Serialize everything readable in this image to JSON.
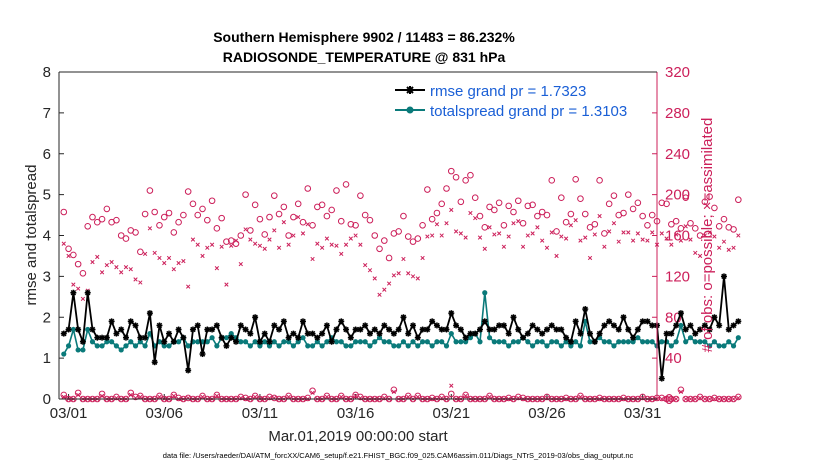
{
  "chart_data": {
    "type": "line",
    "title_line1": "Southern Hemisphere 9902 / 11483 = 86.232%",
    "title_line2": "RADIOSONDE_TEMPERATURE @ 831 hPa",
    "ylabel_left": "rmse and totalspread",
    "ylabel_right": "# of obs: o=possible; ×=assimilated",
    "xlabel": "Mar.01,2019 00:00:00 start",
    "footer": "data file: /Users/raeder/DAI/ATM_forcXX/CAM6_setup/f.e21.FHIST_BGC.f09_025.CAM6assim.011/Diags_NTrS_2019-03/obs_diag_output.nc",
    "xlim": [
      0.5,
      31.75
    ],
    "ylim_left": [
      0,
      8
    ],
    "ylim_right": [
      0,
      320
    ],
    "left_ticks": [
      "0",
      "1",
      "2",
      "3",
      "4",
      "5",
      "6",
      "7",
      "8"
    ],
    "right_ticks": [
      "0",
      "40",
      "80",
      "120",
      "160",
      "200",
      "240",
      "280",
      "320"
    ],
    "x_ticks": [
      {
        "pos": 1,
        "label": "03/01"
      },
      {
        "pos": 6,
        "label": "03/06"
      },
      {
        "pos": 11,
        "label": "03/11"
      },
      {
        "pos": 16,
        "label": "03/16"
      },
      {
        "pos": 21,
        "label": "03/21"
      },
      {
        "pos": 26,
        "label": "03/26"
      },
      {
        "pos": 31,
        "label": "03/31"
      }
    ],
    "x_start": 0.75,
    "x_step": 0.25,
    "series": [
      {
        "name": "rmse",
        "legend": "rmse grand pr = 1.7323",
        "color": "#000000",
        "values": [
          1.6,
          1.7,
          2.6,
          1.7,
          1.4,
          2.6,
          1.7,
          1.5,
          1.5,
          1.5,
          1.9,
          1.6,
          1.7,
          1.5,
          1.9,
          1.8,
          1.5,
          1.5,
          2.1,
          0.9,
          1.8,
          1.4,
          1.6,
          1.4,
          1.7,
          1.5,
          0.7,
          1.7,
          1.8,
          1.1,
          1.7,
          1.7,
          1.8,
          1.5,
          1.3,
          1.5,
          1.4,
          1.8,
          1.7,
          1.6,
          2.0,
          1.4,
          1.6,
          1.4,
          1.8,
          1.7,
          1.9,
          1.5,
          1.6,
          1.5,
          1.9,
          1.6,
          1.6,
          1.5,
          1.6,
          1.8,
          1.4,
          1.7,
          1.9,
          1.7,
          1.5,
          1.7,
          1.7,
          1.8,
          1.6,
          1.7,
          1.6,
          1.8,
          1.7,
          1.6,
          1.7,
          2.0,
          1.6,
          1.8,
          1.5,
          1.7,
          1.7,
          1.9,
          1.8,
          1.7,
          1.7,
          2.1,
          1.8,
          1.7,
          1.5,
          1.6,
          1.6,
          1.7,
          1.9,
          1.7,
          1.7,
          1.8,
          1.8,
          1.6,
          2.0,
          1.7,
          1.5,
          1.6,
          1.8,
          1.7,
          1.6,
          1.7,
          1.8,
          1.7,
          1.7,
          1.5,
          1.4,
          1.9,
          1.6,
          2.2,
          1.6,
          1.4,
          1.6,
          1.8,
          1.9,
          1.8,
          1.7,
          2.0,
          1.7,
          1.5,
          1.7,
          1.9,
          1.9,
          1.8,
          1.8,
          0.5,
          1.6,
          1.6,
          1.8,
          2.1,
          1.7,
          1.8,
          1.6,
          1.7,
          1.8,
          1.7,
          2.0,
          1.8,
          3.0,
          1.7,
          1.8,
          1.9
        ]
      },
      {
        "name": "totalspread",
        "legend": "totalspread grand pr = 1.3103",
        "color": "#0a7a7a",
        "values": [
          1.1,
          1.3,
          1.7,
          1.2,
          1.2,
          1.7,
          1.4,
          1.3,
          1.3,
          1.4,
          1.4,
          1.3,
          1.2,
          1.3,
          1.4,
          1.3,
          1.4,
          1.3,
          1.6,
          1.3,
          1.4,
          1.3,
          1.3,
          1.4,
          1.4,
          1.5,
          1.3,
          1.4,
          1.4,
          1.4,
          1.4,
          1.5,
          1.3,
          1.5,
          1.5,
          1.6,
          1.5,
          1.4,
          1.4,
          1.3,
          1.4,
          1.3,
          1.4,
          1.3,
          1.4,
          1.3,
          1.4,
          1.4,
          1.3,
          1.4,
          1.5,
          1.3,
          1.3,
          1.4,
          1.3,
          1.4,
          1.5,
          1.4,
          1.4,
          1.3,
          1.3,
          1.4,
          1.4,
          1.4,
          1.3,
          1.4,
          1.5,
          1.4,
          1.4,
          1.3,
          1.3,
          1.4,
          1.3,
          1.4,
          1.3,
          1.4,
          1.4,
          1.3,
          1.4,
          1.4,
          1.3,
          1.6,
          1.4,
          1.4,
          1.4,
          1.5,
          1.6,
          1.4,
          2.6,
          1.5,
          1.4,
          1.4,
          1.4,
          1.3,
          1.4,
          1.4,
          1.5,
          1.4,
          1.3,
          1.4,
          1.4,
          1.3,
          1.4,
          1.4,
          1.3,
          1.4,
          1.3,
          1.4,
          1.3,
          1.9,
          1.4,
          1.4,
          1.5,
          1.4,
          1.4,
          1.3,
          1.4,
          1.4,
          1.4,
          1.4,
          1.5,
          1.4,
          1.4,
          1.4,
          1.3,
          1.4,
          1.4,
          1.3,
          1.4,
          1.8,
          1.4,
          1.5,
          1.4,
          1.4,
          1.4,
          1.3,
          1.4,
          1.3,
          1.3,
          1.4,
          1.3,
          1.5
        ]
      },
      {
        "name": "possible obs",
        "marker": "circle",
        "color": "#cc1f5a",
        "axis": "right",
        "values": [
          183,
          147,
          141,
          132,
          123,
          169,
          178,
          173,
          176,
          186,
          173,
          175,
          160,
          157,
          165,
          163,
          144,
          181,
          204,
          183,
          170,
          178,
          182,
          163,
          173,
          180,
          203,
          191,
          180,
          186,
          175,
          194,
          167,
          177,
          154,
          155,
          152,
          160,
          200,
          165,
          190,
          176,
          161,
          178,
          199,
          181,
          188,
          160,
          178,
          191,
          173,
          206,
          170,
          188,
          190,
          179,
          185,
          204,
          174,
          210,
          171,
          170,
          199,
          180,
          175,
          160,
          147,
          155,
          138,
          162,
          164,
          179,
          159,
          154,
          157,
          170,
          205,
          176,
          182,
          191,
          206,
          223,
          217,
          193,
          214,
          219,
          197,
          179,
          168,
          188,
          185,
          192,
          170,
          189,
          183,
          194,
          172,
          189,
          190,
          179,
          183,
          180,
          214,
          164,
          197,
          173,
          181,
          215,
          196,
          181,
          168,
          171,
          214,
          162,
          191,
          199,
          180,
          182,
          200,
          186,
          192,
          179,
          170,
          180,
          174,
          192,
          191,
          171,
          174,
          167,
          197,
          172,
          167,
          160,
          193,
          198,
          187,
          169,
          176,
          168,
          166,
          195
        ]
      },
      {
        "name": "assimilated obs",
        "marker": "cross",
        "color": "#cc1f5a",
        "axis": "right",
        "values": [
          152,
          140,
          112,
          108,
          98,
          106,
          134,
          139,
          124,
          131,
          134,
          129,
          124,
          129,
          127,
          117,
          114,
          142,
          167,
          143,
          138,
          133,
          138,
          127,
          133,
          135,
          110,
          156,
          151,
          140,
          148,
          151,
          128,
          149,
          112,
          150,
          155,
          132,
          166,
          156,
          152,
          150,
          147,
          156,
          165,
          148,
          173,
          151,
          160,
          178,
          162,
          171,
          137,
          152,
          148,
          157,
          151,
          150,
          142,
          151,
          157,
          160,
          151,
          131,
          126,
          118,
          102,
          107,
          113,
          121,
          123,
          137,
          123,
          120,
          118,
          138,
          159,
          160,
          171,
          160,
          172,
          185,
          164,
          162,
          158,
          182,
          177,
          158,
          147,
          168,
          161,
          162,
          149,
          159,
          172,
          174,
          149,
          160,
          162,
          168,
          155,
          148,
          163,
          140,
          159,
          157,
          170,
          175,
          155,
          158,
          138,
          161,
          179,
          149,
          164,
          172,
          154,
          163,
          163,
          155,
          162,
          156,
          155,
          163,
          151,
          162,
          157,
          151,
          161,
          155,
          169,
          156,
          143,
          140,
          160,
          163,
          159,
          148,
          154,
          146,
          148,
          160
        ]
      },
      {
        "name": "possible obs near zero",
        "marker": "circle",
        "color": "#cc1f5a",
        "axis": "right",
        "values": [
          4,
          0,
          0,
          6,
          0,
          0,
          0,
          0,
          5,
          0,
          0,
          2,
          0,
          0,
          6,
          2,
          3,
          0,
          0,
          0,
          3,
          0,
          0,
          4,
          1,
          0,
          1,
          0,
          0,
          3,
          0,
          0,
          4,
          0,
          0,
          0,
          0,
          2,
          1,
          0,
          3,
          0,
          0,
          2,
          1,
          0,
          0,
          3,
          0,
          0,
          0,
          1,
          8,
          0,
          0,
          3,
          0,
          0,
          3,
          0,
          0,
          4,
          2,
          0,
          0,
          0,
          0,
          2,
          0,
          9,
          0,
          0,
          3,
          0,
          3,
          0,
          0,
          1,
          0,
          2,
          0,
          5,
          0,
          0,
          4,
          0,
          0,
          0,
          0,
          3,
          0,
          0,
          0,
          1,
          0,
          2,
          1,
          0,
          0,
          0,
          0,
          2,
          0,
          0,
          0,
          1,
          0,
          0,
          3,
          0,
          0,
          0,
          1,
          0,
          0,
          0,
          0,
          1,
          0,
          0,
          0,
          2,
          0,
          0,
          1,
          1,
          0,
          0,
          0,
          9,
          0,
          0,
          0,
          2,
          0,
          0,
          1,
          0,
          0,
          0,
          0,
          2
        ]
      },
      {
        "name": "assimilated obs near zero",
        "marker": "cross",
        "color": "#cc1f5a",
        "axis": "right",
        "values": [
          2,
          0,
          0,
          4,
          0,
          0,
          0,
          0,
          3,
          0,
          0,
          1,
          0,
          0,
          4,
          1,
          2,
          0,
          0,
          0,
          2,
          0,
          0,
          3,
          0,
          0,
          1,
          0,
          0,
          2,
          0,
          0,
          3,
          0,
          0,
          0,
          0,
          1,
          0,
          0,
          2,
          0,
          0,
          1,
          1,
          0,
          0,
          2,
          0,
          0,
          0,
          0,
          6,
          0,
          0,
          2,
          0,
          0,
          2,
          0,
          0,
          3,
          1,
          0,
          0,
          0,
          0,
          1,
          0,
          7,
          0,
          0,
          2,
          0,
          2,
          0,
          0,
          0,
          0,
          1,
          0,
          13,
          0,
          0,
          3,
          0,
          0,
          0,
          0,
          2,
          0,
          0,
          0,
          0,
          0,
          1,
          0,
          0,
          0,
          0,
          0,
          1,
          0,
          0,
          0,
          0,
          0,
          0,
          2,
          0,
          0,
          0,
          0,
          0,
          0,
          0,
          0,
          0,
          0,
          0,
          0,
          1,
          0,
          0,
          0,
          0,
          0,
          0,
          0,
          7,
          0,
          0,
          0,
          1,
          0,
          0,
          0,
          0,
          0,
          0,
          0,
          1
        ]
      }
    ]
  }
}
